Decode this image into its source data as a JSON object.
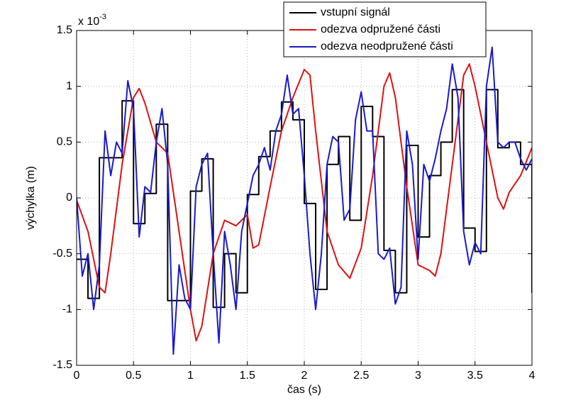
{
  "chart_data": {
    "type": "line",
    "xlabel": "čas (s)",
    "ylabel": "výchylka (m)",
    "axis_multiplier": {
      "base": "x 10",
      "exponent": "-3"
    },
    "xlim": [
      0,
      4
    ],
    "xticks": [
      0,
      0.5,
      1,
      1.5,
      2,
      2.5,
      3,
      3.5,
      4
    ],
    "ylim": [
      -1.5,
      1.5
    ],
    "yticks": [
      -1.5,
      -1,
      -0.5,
      0,
      0.5,
      1,
      1.5
    ],
    "grid": true,
    "legend": "upper right",
    "series": [
      {
        "name": "vstupní signál",
        "color": "#000000",
        "x": [
          0,
          0.1,
          0.1,
          0.2,
          0.2,
          0.3,
          0.3,
          0.4,
          0.4,
          0.5,
          0.5,
          0.6,
          0.6,
          0.7,
          0.7,
          0.8,
          0.8,
          0.9,
          0.9,
          1,
          1,
          1.1,
          1.1,
          1.2,
          1.2,
          1.3,
          1.3,
          1.4,
          1.4,
          1.5,
          1.5,
          1.6,
          1.6,
          1.7,
          1.7,
          1.8,
          1.8,
          1.9,
          1.9,
          2,
          2,
          2.1,
          2.1,
          2.2,
          2.2,
          2.3,
          2.3,
          2.4,
          2.4,
          2.5,
          2.5,
          2.6,
          2.6,
          2.7,
          2.7,
          2.8,
          2.8,
          2.9,
          2.9,
          3,
          3,
          3.1,
          3.1,
          3.2,
          3.2,
          3.3,
          3.3,
          3.4,
          3.4,
          3.5,
          3.5,
          3.6,
          3.6,
          3.7,
          3.7,
          3.8,
          3.8,
          3.9,
          3.9,
          4,
          4
        ],
        "values": [
          -0.55,
          -0.55,
          -0.9,
          -0.9,
          0.36,
          0.36,
          0.36,
          0.36,
          0.87,
          0.87,
          -0.23,
          -0.23,
          0.04,
          0.04,
          0.66,
          0.66,
          -0.92,
          -0.92,
          -0.92,
          -0.92,
          0.06,
          0.06,
          0.35,
          0.35,
          -0.98,
          -0.98,
          -0.5,
          -0.5,
          -0.85,
          -0.85,
          0.03,
          0.03,
          0.37,
          0.37,
          0.6,
          0.6,
          0.86,
          0.86,
          0.7,
          0.7,
          -0.05,
          -0.05,
          -0.82,
          -0.82,
          0.3,
          0.3,
          0.55,
          0.55,
          -0.2,
          -0.2,
          0.82,
          0.82,
          0.55,
          0.55,
          -0.47,
          -0.47,
          -0.85,
          -0.85,
          0.47,
          0.47,
          -0.35,
          -0.35,
          0.2,
          0.2,
          0.5,
          0.5,
          0.97,
          0.97,
          -0.27,
          -0.27,
          -0.48,
          -0.48,
          0.97,
          0.97,
          0.45,
          0.45,
          0.5,
          0.5,
          0.3,
          0.3,
          -0.85
        ]
      },
      {
        "name": "odezva odpružené části",
        "color": "#dd1111",
        "x": [
          0,
          0.1,
          0.2,
          0.25,
          0.3,
          0.4,
          0.5,
          0.55,
          0.6,
          0.7,
          0.8,
          0.9,
          1,
          1.05,
          1.1,
          1.2,
          1.3,
          1.4,
          1.5,
          1.55,
          1.6,
          1.7,
          1.8,
          1.9,
          2,
          2.05,
          2.1,
          2.2,
          2.3,
          2.4,
          2.5,
          2.6,
          2.7,
          2.75,
          2.8,
          2.9,
          3,
          3.1,
          3.15,
          3.2,
          3.3,
          3.4,
          3.45,
          3.5,
          3.6,
          3.7,
          3.75,
          3.8,
          3.9,
          4
        ],
        "values": [
          -0.02,
          -0.3,
          -0.8,
          -0.85,
          -0.5,
          0.3,
          0.9,
          0.98,
          0.85,
          0.5,
          0.4,
          -0.3,
          -1,
          -1.28,
          -1.15,
          -0.5,
          -0.2,
          -0.25,
          -0.15,
          -0.45,
          -0.42,
          0.1,
          0.6,
          0.9,
          1.15,
          1.1,
          0.6,
          -0.3,
          -0.6,
          -0.72,
          -0.45,
          0.2,
          1,
          1.12,
          0.9,
          0.1,
          -0.6,
          -0.65,
          -0.7,
          -0.5,
          0.3,
          1.1,
          1.2,
          1,
          0.5,
          0,
          -0.1,
          0.05,
          0.2,
          0.45
        ]
      },
      {
        "name": "odezva neodpružené části",
        "color": "#1a1acc",
        "x": [
          0,
          0.05,
          0.1,
          0.15,
          0.2,
          0.25,
          0.3,
          0.35,
          0.4,
          0.45,
          0.5,
          0.55,
          0.6,
          0.65,
          0.7,
          0.75,
          0.8,
          0.85,
          0.9,
          0.95,
          1,
          1.05,
          1.1,
          1.15,
          1.2,
          1.25,
          1.3,
          1.35,
          1.4,
          1.45,
          1.5,
          1.55,
          1.6,
          1.65,
          1.7,
          1.75,
          1.8,
          1.85,
          1.9,
          1.95,
          2,
          2.05,
          2.1,
          2.15,
          2.2,
          2.25,
          2.3,
          2.35,
          2.4,
          2.45,
          2.5,
          2.55,
          2.6,
          2.65,
          2.7,
          2.75,
          2.8,
          2.85,
          2.9,
          2.95,
          3,
          3.05,
          3.1,
          3.15,
          3.2,
          3.25,
          3.3,
          3.35,
          3.4,
          3.45,
          3.5,
          3.55,
          3.6,
          3.65,
          3.7,
          3.75,
          3.8,
          3.85,
          3.9,
          3.95,
          4
        ],
        "values": [
          0,
          -0.7,
          -0.5,
          -1,
          -0.6,
          0.6,
          0.2,
          0.5,
          0.4,
          1.05,
          0.8,
          -0.35,
          0.1,
          0.05,
          0.5,
          0.8,
          0.3,
          -1.4,
          -0.6,
          -0.9,
          -1,
          0.1,
          0.3,
          0.4,
          -0.5,
          -1.3,
          -0.3,
          -0.6,
          -1,
          -0.3,
          -0.05,
          0.2,
          0.3,
          0.45,
          0.25,
          0.6,
          0.75,
          1.1,
          0.75,
          0.8,
          0.2,
          -0.5,
          -1,
          -0.5,
          0.3,
          0.55,
          0.5,
          -0.2,
          -0.1,
          0.7,
          0.95,
          0.6,
          0.6,
          -0.5,
          -0.55,
          -0.45,
          -0.95,
          -0.8,
          0.6,
          0.3,
          -0.55,
          0.3,
          0.15,
          0.35,
          0.6,
          0.8,
          1.2,
          0.9,
          -0.3,
          -0.6,
          -0.4,
          -0.5,
          1,
          1.35,
          0.5,
          0.45,
          0.5,
          0.5,
          0.35,
          0.25,
          0.35
        ]
      }
    ]
  }
}
